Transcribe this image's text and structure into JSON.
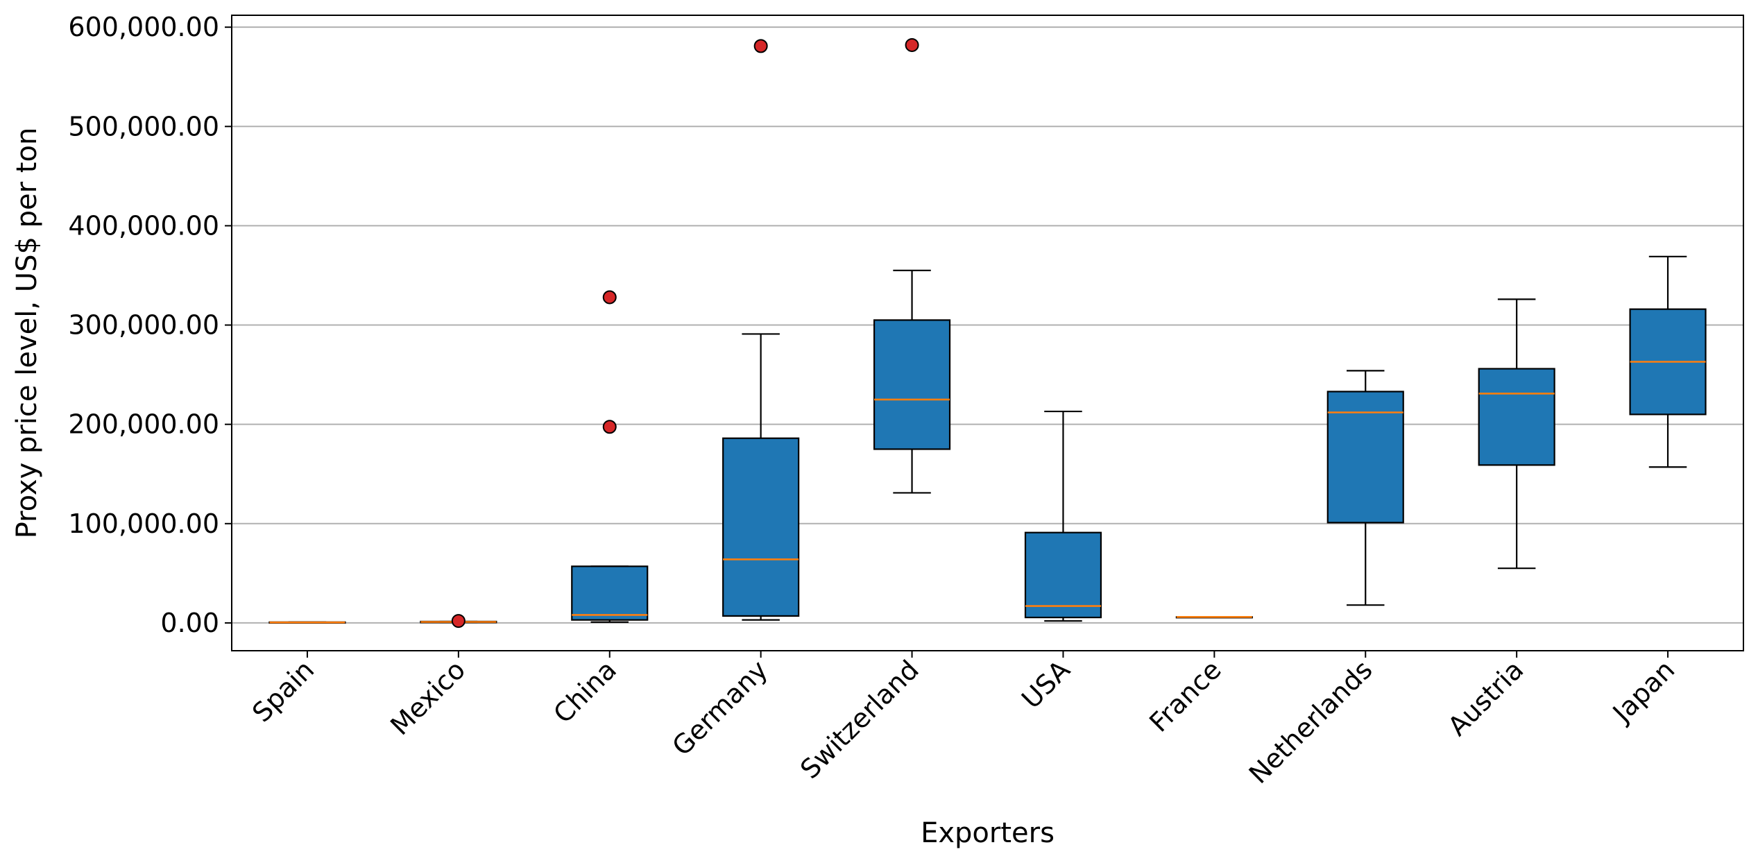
{
  "chart_data": {
    "type": "box",
    "xlabel": "Exporters",
    "ylabel": "Proxy price level, US$ per ton",
    "ylim": [
      -28000,
      612000
    ],
    "yticks": [
      0,
      100000,
      200000,
      300000,
      400000,
      500000,
      600000
    ],
    "ytick_labels": [
      "0.00",
      "100,000.00",
      "200,000.00",
      "300,000.00",
      "400,000.00",
      "500,000.00",
      "600,000.00"
    ],
    "grid": "horizontal",
    "colors": {
      "box_fill": "#1f77b4",
      "median": "#ff7f0e",
      "outlier_fill": "#d62728",
      "grid": "#b0b0b0"
    },
    "categories": [
      "Spain",
      "Mexico",
      "China",
      "Germany",
      "Switzerland",
      "USA",
      "France",
      "Netherlands",
      "Austria",
      "Japan"
    ],
    "boxes": [
      {
        "category": "Spain",
        "whisker_low": 0,
        "q1": 0,
        "median": 500,
        "q3": 800,
        "whisker_high": 800,
        "outliers": []
      },
      {
        "category": "Mexico",
        "whisker_low": 400,
        "q1": 400,
        "median": 1000,
        "q3": 1400,
        "whisker_high": 1400,
        "outliers": [
          2000
        ]
      },
      {
        "category": "China",
        "whisker_low": 800,
        "q1": 3000,
        "median": 8000,
        "q3": 57000,
        "whisker_high": 57000,
        "outliers": [
          197500,
          328000
        ]
      },
      {
        "category": "Germany",
        "whisker_low": 3000,
        "q1": 7000,
        "median": 64000,
        "q3": 186000,
        "whisker_high": 291000,
        "outliers": [
          581000
        ]
      },
      {
        "category": "Switzerland",
        "whisker_low": 131000,
        "q1": 175000,
        "median": 225000,
        "q3": 305000,
        "whisker_high": 355000,
        "outliers": [
          582000
        ]
      },
      {
        "category": "USA",
        "whisker_low": 2000,
        "q1": 5500,
        "median": 17000,
        "q3": 91000,
        "whisker_high": 213000,
        "outliers": []
      },
      {
        "category": "France",
        "whisker_low": 6000,
        "q1": 6000,
        "median": 6000,
        "q3": 6000,
        "whisker_high": 6000,
        "outliers": []
      },
      {
        "category": "Netherlands",
        "whisker_low": 18000,
        "q1": 101000,
        "median": 212000,
        "q3": 233000,
        "whisker_high": 254000,
        "outliers": []
      },
      {
        "category": "Austria",
        "whisker_low": 55000,
        "q1": 159000,
        "median": 231000,
        "q3": 256000,
        "whisker_high": 326000,
        "outliers": []
      },
      {
        "category": "Japan",
        "whisker_low": 157000,
        "q1": 210000,
        "median": 263000,
        "q3": 316000,
        "whisker_high": 369000,
        "outliers": []
      }
    ]
  }
}
